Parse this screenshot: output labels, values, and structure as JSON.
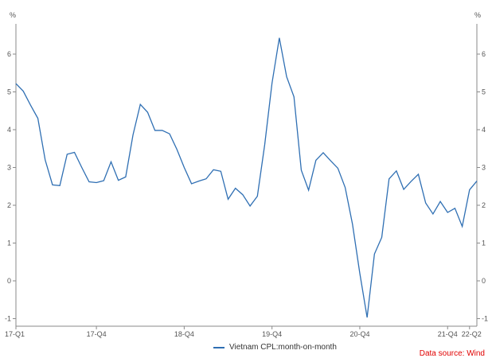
{
  "chart_data": {
    "type": "line",
    "ylabel_left": "%",
    "ylabel_right": "%",
    "ylim": [
      -1.2,
      6.8
    ],
    "yticks": [
      -1,
      0,
      1,
      2,
      3,
      4,
      5,
      6
    ],
    "xticks": [
      {
        "index": 0,
        "label": "17-Q1"
      },
      {
        "index": 11,
        "label": "17-Q4"
      },
      {
        "index": 23,
        "label": "18-Q4"
      },
      {
        "index": 35,
        "label": "19-Q4"
      },
      {
        "index": 47,
        "label": "20-Q4"
      },
      {
        "index": 59,
        "label": "21-Q4"
      },
      {
        "index": 62,
        "label": "22-Q2"
      }
    ],
    "series": [
      {
        "name": "Vietnam CPI:month-on-month",
        "color": "#2f6fb3",
        "values": [
          5.22,
          5.02,
          4.65,
          4.3,
          3.2,
          2.54,
          2.52,
          3.35,
          3.4,
          3.0,
          2.62,
          2.6,
          2.65,
          3.15,
          2.66,
          2.75,
          3.86,
          4.67,
          4.46,
          3.98,
          3.98,
          3.89,
          3.48,
          3.0,
          2.57,
          2.64,
          2.7,
          2.94,
          2.9,
          2.16,
          2.45,
          2.28,
          1.98,
          2.24,
          3.6,
          5.23,
          6.43,
          5.4,
          4.87,
          2.93,
          2.4,
          3.19,
          3.39,
          3.18,
          2.98,
          2.47,
          1.5,
          0.2,
          -0.97,
          0.71,
          1.15,
          2.7,
          2.91,
          2.42,
          2.63,
          2.82,
          2.06,
          1.77,
          2.1,
          1.81,
          1.92,
          1.44,
          2.41,
          2.64
        ]
      }
    ],
    "legend": {
      "label": "Vietnam CPL:month-on-month",
      "placement": "bottom-center"
    },
    "grid": false
  },
  "source_text": "Data source: Wind"
}
